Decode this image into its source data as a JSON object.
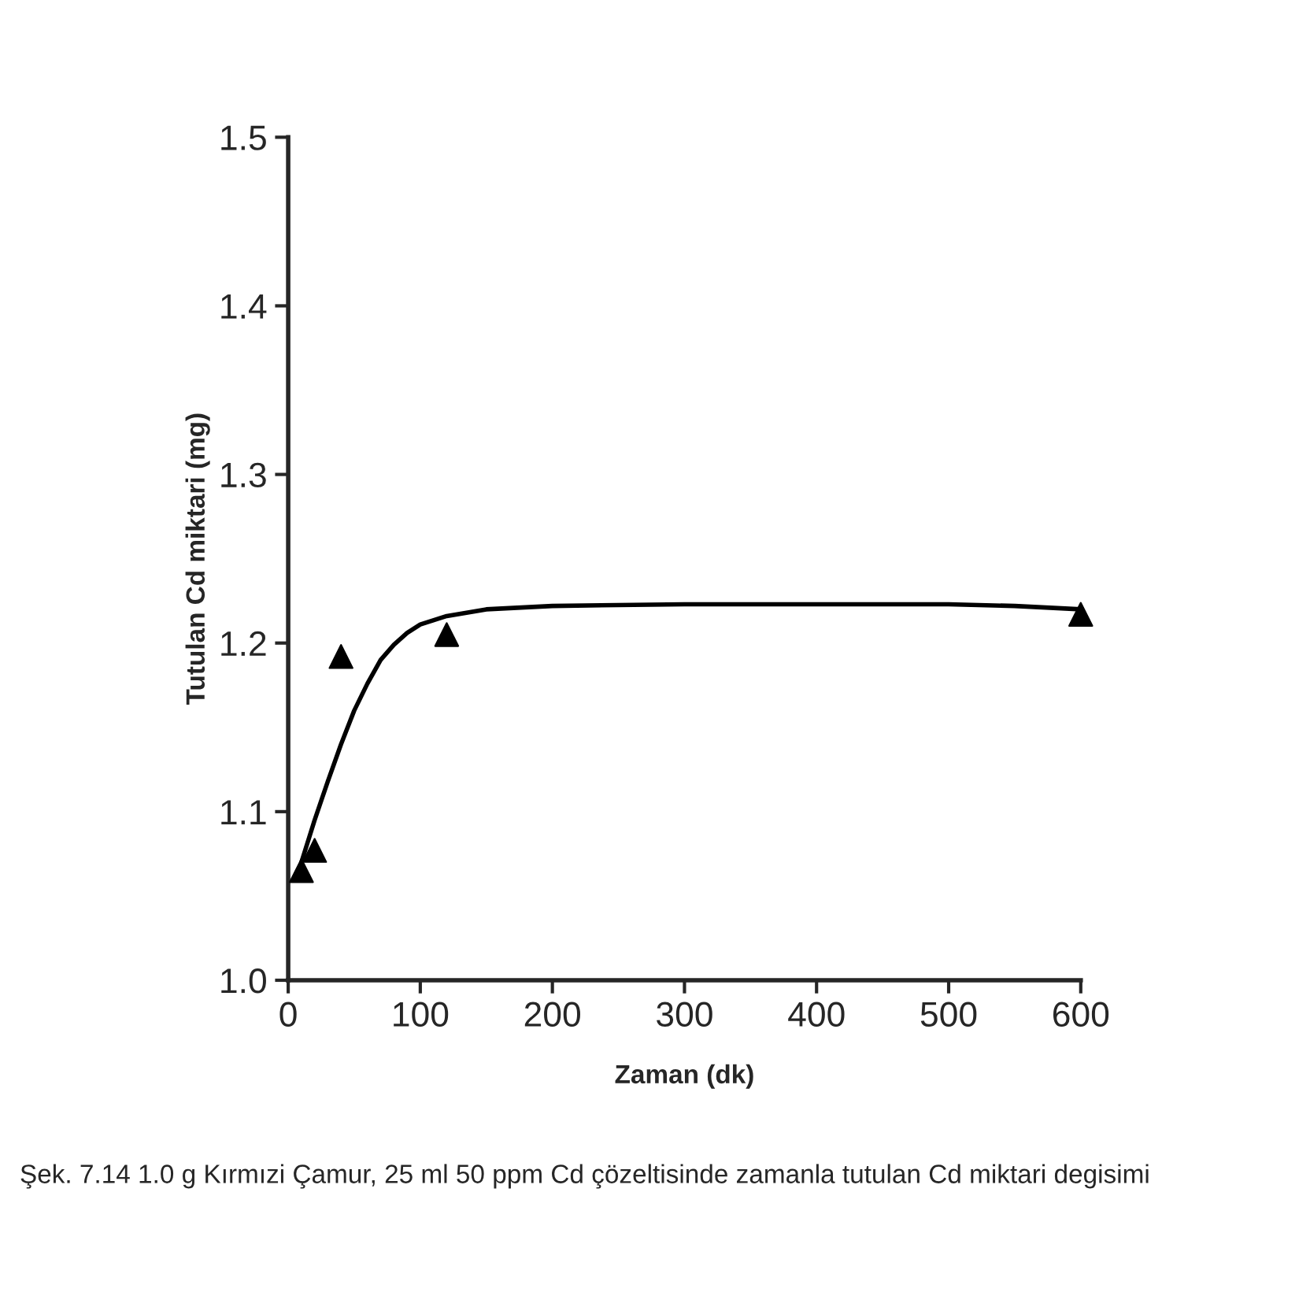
{
  "chart_data": {
    "type": "scatter",
    "xlabel": "Zaman (dk)",
    "ylabel": "Tutulan Cd miktari (mg)",
    "annotations": [
      "Şek. 7.14 1.0 g Kırmızi Çamur, 25 ml 50 ppm Cd çözeltisinde zamanla tutulan Cd miktari degisimi"
    ],
    "series": [
      {
        "color": "#000000",
        "marker": "triangle",
        "x": [
          10,
          20,
          40,
          120,
          600
        ],
        "values": [
          1.065,
          1.077,
          1.192,
          1.205,
          1.217
        ]
      },
      {
        "type": "line",
        "color": "#000000",
        "marker": "none",
        "line_style": "solid",
        "x": [
          10,
          20,
          30,
          40,
          50,
          60,
          70,
          80,
          90,
          100,
          120,
          150,
          200,
          300,
          400,
          500,
          550,
          600
        ],
        "values": [
          1.07,
          1.095,
          1.118,
          1.14,
          1.16,
          1.176,
          1.19,
          1.199,
          1.206,
          1.211,
          1.216,
          1.22,
          1.222,
          1.223,
          1.223,
          1.223,
          1.222,
          1.22
        ]
      }
    ],
    "xlim": [
      0,
      600
    ],
    "xticks": [
      0,
      100,
      200,
      300,
      400,
      500,
      600
    ],
    "ylim": [
      1.0,
      1.5
    ],
    "yticks": [
      {
        "value": 1.0,
        "label": "1.0"
      },
      1.1,
      1.2,
      1.3,
      1.4,
      1.5
    ],
    "grid": false,
    "legend": false
  }
}
